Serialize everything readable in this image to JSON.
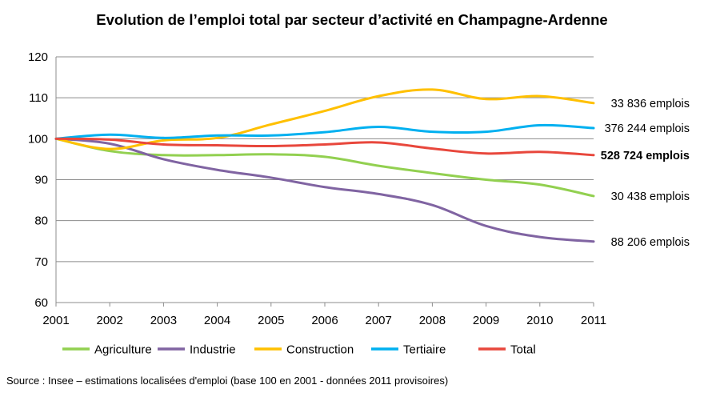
{
  "chart_data": {
    "type": "line",
    "title": "Evolution de l’emploi total par secteur d’activité en Champagne-Ardenne",
    "xlabel": "",
    "ylabel": "",
    "x": [
      "2001",
      "2002",
      "2003",
      "2004",
      "2005",
      "2006",
      "2007",
      "2008",
      "2009",
      "2010",
      "2011"
    ],
    "ylim": [
      60,
      120
    ],
    "yticks": [
      "60",
      "70",
      "80",
      "90",
      "100",
      "110",
      "120"
    ],
    "grid": true,
    "legend_position": "bottom",
    "series": [
      {
        "name": "Agriculture",
        "color": "#92d050",
        "values": [
          100,
          97,
          96,
          96,
          96.2,
          95.6,
          93.4,
          91.6,
          90,
          88.8,
          86
        ],
        "end_label": "30 438 emplois",
        "bold": false
      },
      {
        "name": "Industrie",
        "color": "#8064a2",
        "values": [
          100,
          98.8,
          95,
          92.4,
          90.5,
          88.2,
          86.5,
          83.8,
          78.7,
          76,
          74.9
        ],
        "end_label": "88 206 emplois",
        "bold": false
      },
      {
        "name": "Construction",
        "color": "#ffc000",
        "values": [
          100,
          97.5,
          99.6,
          100.2,
          103.5,
          106.8,
          110.4,
          112,
          109.7,
          110.4,
          108.7
        ],
        "end_label": "33 836 emplois",
        "bold": false
      },
      {
        "name": "Tertiaire",
        "color": "#00b0f0",
        "values": [
          100,
          101,
          100.2,
          100.8,
          100.8,
          101.6,
          102.9,
          101.7,
          101.7,
          103.3,
          102.6
        ],
        "end_label": "376 244 emplois",
        "bold": false
      },
      {
        "name": "Total",
        "color": "#e8473c",
        "values": [
          100,
          99.8,
          98.6,
          98.4,
          98.2,
          98.6,
          99.1,
          97.6,
          96.4,
          96.8,
          96
        ],
        "end_label": "528 724 emplois",
        "bold": true
      }
    ]
  },
  "source": "Source : Insee – estimations localisées d'emploi (base 100 en 2001 - données 2011 provisoires)"
}
